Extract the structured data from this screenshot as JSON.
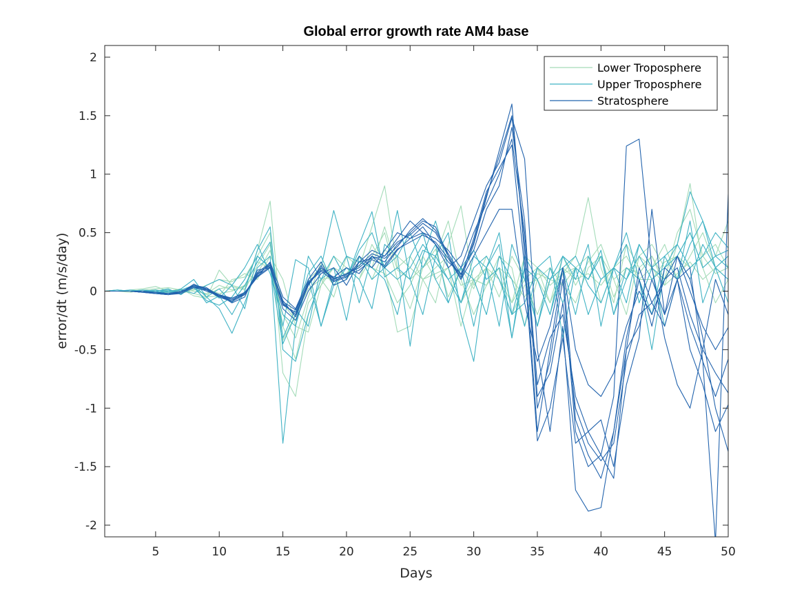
{
  "chart_data": {
    "type": "line",
    "title": "Global error growth rate AM4 base",
    "xlabel": "Days",
    "ylabel": "error/dt (m/s/day)",
    "xlim": [
      1,
      50
    ],
    "ylim": [
      -2.1,
      2.1
    ],
    "xticks": [
      5,
      10,
      15,
      20,
      25,
      30,
      35,
      40,
      45,
      50
    ],
    "yticks": [
      -2,
      -1.5,
      -1,
      -0.5,
      0,
      0.5,
      1,
      1.5,
      2
    ],
    "grid": false,
    "legend_position": "top-right",
    "series": [
      {
        "name": "Lower Troposphere",
        "color": "#a3dbb8",
        "lines": [
          [
            0,
            0,
            0,
            0.01,
            -0.01,
            0,
            -0.01,
            0.02,
            -0.03,
            0.02,
            0.04,
            0.01,
            0.22,
            0.4,
            -0.3,
            -0.58,
            -0.1,
            0.05,
            0.2,
            0.14,
            0.3,
            0.2,
            0.55,
            0.18,
            0.1,
            0.2,
            0.36,
            -0.05,
            0.2,
            0.02,
            0.3,
            0.1,
            -0.2,
            0.05,
            0.1,
            -0.1,
            0.3,
            0.05,
            0.25,
            0.4,
            0.1,
            0.2,
            0.15,
            0.3,
            0.05,
            0.4,
            0.92,
            0.2,
            0.3,
            0.6
          ],
          [
            0,
            0,
            0.01,
            0.02,
            0.04,
            0,
            0.02,
            -0.04,
            -0.06,
            0.18,
            0.05,
            0.02,
            0.35,
            0.77,
            -0.42,
            -0.2,
            0.02,
            0.1,
            -0.05,
            0.3,
            0.2,
            0.55,
            0.9,
            0.2,
            0.3,
            0.1,
            0.15,
            0.2,
            -0.3,
            0.1,
            0.05,
            0.2,
            -0.1,
            0.3,
            0.2,
            -0.1,
            0.15,
            0.3,
            0.8,
            0.2,
            -0.1,
            0.4,
            0.2,
            0.3,
            0.1,
            0.5,
            0.7,
            0.3,
            0.4,
            0.2
          ],
          [
            0,
            0,
            -0.01,
            0.01,
            0.02,
            0.03,
            0.01,
            -0.02,
            -0.05,
            -0.04,
            0.1,
            0.12,
            0.3,
            0.5,
            -0.7,
            -0.9,
            -0.2,
            0.1,
            0.12,
            0.2,
            0.1,
            0.3,
            0.5,
            0.1,
            -0.15,
            0.2,
            0.3,
            0.6,
            0.1,
            -0.2,
            0.05,
            0.3,
            0.2,
            -0.3,
            0.1,
            0.2,
            0.05,
            -0.1,
            0.2,
            0.3,
            0.1,
            -0.2,
            0.3,
            0.4,
            0.2,
            0.3,
            0.5,
            0.2,
            -0.1,
            0.1
          ],
          [
            0,
            0,
            0,
            -0.01,
            0.01,
            0,
            -0.02,
            0.01,
            0.05,
            0.1,
            0.08,
            0.15,
            0.1,
            0.3,
            0.1,
            -0.3,
            -0.35,
            0.05,
            0.3,
            0.2,
            0.1,
            0.4,
            0.2,
            -0.35,
            -0.3,
            0.1,
            0.2,
            0.3,
            0.05,
            0.1,
            0.2,
            -0.05,
            0.3,
            0.1,
            -0.2,
            0.1,
            0.05,
            0.2,
            0.3,
            -0.1,
            0.2,
            0.1,
            0.3,
            0.2,
            0.4,
            0.1,
            0.3,
            0.5,
            0.2,
            0.1
          ],
          [
            0,
            0.01,
            0,
            0,
            -0.02,
            -0.01,
            0.01,
            0,
            -0.02,
            0.05,
            0.01,
            0.04,
            0.25,
            0.2,
            -0.2,
            -0.4,
            -0.05,
            0.25,
            0.1,
            0.15,
            0.3,
            0.1,
            0.35,
            0.3,
            0.2,
            0.1,
            -0.1,
            0.4,
            0.73,
            0.05,
            0.2,
            0.1,
            -0.1,
            0.1,
            0.2,
            0.05,
            0.15,
            0.2,
            0.1,
            0.3,
            -0.05,
            0.2,
            0.1,
            0.1,
            0.25,
            0.3,
            0.2,
            0.3,
            0.15,
            0.2
          ],
          [
            0,
            0,
            0,
            0,
            0.01,
            -0.01,
            0,
            0.03,
            0.02,
            -0.02,
            0,
            0.05,
            0.15,
            0.35,
            -0.1,
            -0.25,
            0.1,
            0.2,
            0.05,
            0.1,
            0.25,
            0.2,
            0.15,
            -0.1,
            0.05,
            0.3,
            0.1,
            0.2,
            -0.1,
            0.1,
            0.05,
            0.2,
            0.1,
            -0.05,
            0.15,
            0.1,
            0.2,
            0.1,
            0.15,
            0.05,
            0.2,
            0.3,
            0.1,
            0.2,
            0.05,
            0.15,
            0.25,
            0.1,
            0.2,
            0.3
          ]
        ]
      },
      {
        "name": "Upper Troposphere",
        "color": "#3fb2c4",
        "lines": [
          [
            0,
            0,
            0,
            0,
            -0.01,
            0,
            0.01,
            0.05,
            -0.1,
            -0.04,
            -0.2,
            0,
            0.35,
            0.55,
            -0.5,
            -0.6,
            -0.2,
            0.1,
            0.3,
            0.1,
            0.4,
            0.68,
            0.12,
            0.2,
            0.1,
            0.35,
            0.3,
            0.5,
            -0.2,
            -0.6,
            0.2,
            0.4,
            -0.4,
            0.2,
            0.1,
            -0.2,
            0.3,
            0.1,
            0.4,
            -0.3,
            0.2,
            0.5,
            0.1,
            -0.2,
            0.3,
            0.4,
            0.85,
            0.6,
            0.3,
            0.35
          ],
          [
            0,
            0.01,
            0,
            -0.01,
            0,
            0.02,
            -0.03,
            0.05,
            -0.05,
            -0.15,
            -0.36,
            -0.1,
            0.2,
            0.3,
            -1.3,
            -0.3,
            0.1,
            -0.3,
            0.05,
            0.2,
            0.1,
            -0.15,
            0.4,
            0.3,
            -0.47,
            0.3,
            0.6,
            0.2,
            -0.1,
            0.3,
            0.2,
            -0.3,
            0.4,
            0.1,
            -0.3,
            0.2,
            -0.1,
            0.2,
            0.1,
            0.35,
            -0.2,
            0.1,
            0.4,
            0.2,
            -0.3,
            0.1,
            0.6,
            -0.1,
            0.2,
            0.3
          ],
          [
            0,
            0,
            0.01,
            0,
            0.01,
            -0.01,
            0,
            0.04,
            0.02,
            -0.06,
            0.05,
            -0.15,
            0.3,
            0.2,
            -0.3,
            0.27,
            0.2,
            -0.3,
            0.1,
            0.3,
            0.25,
            0.2,
            0.1,
            -0.2,
            0.3,
            0.5,
            0.1,
            -0.1,
            0.2,
            0.35,
            0.1,
            0.2,
            -0.4,
            0.3,
            0.1,
            -0.2,
            0.2,
            0.3,
            0.05,
            -0.1,
            0.2,
            0.1,
            0.3,
            0.1,
            0.2,
            0.4,
            0.2,
            0.3,
            0.5,
            0.37
          ],
          [
            0,
            0,
            0,
            0.01,
            0,
            -0.02,
            0.02,
            0.1,
            -0.05,
            0.02,
            -0.1,
            0.05,
            0.25,
            0.42,
            -0.4,
            -0.15,
            -0.3,
            0.2,
            0.69,
            0.3,
            -0.1,
            0.3,
            0.2,
            0.69,
            0.1,
            -0.2,
            0.3,
            0.1,
            0.2,
            -0.3,
            0.2,
            0.5,
            -0.2,
            -0.1,
            0.2,
            0.3,
            -0.4,
            0.2,
            0.1,
            0.3,
            -0.2,
            0.2,
            0.1,
            -0.5,
            0.2,
            0.3,
            0.1,
            0.4,
            0.2,
            -0.1
          ],
          [
            0,
            0,
            0,
            0,
            -0.02,
            0,
            0.01,
            -0.02,
            0.05,
            0.1,
            0.05,
            0.2,
            0.4,
            0.15,
            -0.2,
            -0.3,
            0.3,
            0.1,
            0.2,
            -0.25,
            0.3,
            0.1,
            0.2,
            0.3,
            0.5,
            0.2,
            0.4,
            -0.1,
            0.2,
            0.1,
            -0.2,
            0.3,
            0.1,
            -0.3,
            0.2,
            0.1,
            0.3,
            0.2,
            -0.2,
            0.1,
            0.2,
            -0.1,
            0.4,
            0.2,
            0.1,
            0.3,
            0.5,
            0.2,
            0.3,
            0.2
          ],
          [
            0,
            0.01,
            0,
            0,
            0,
            0.01,
            -0.02,
            0.03,
            -0.08,
            -0.12,
            -0.05,
            0.1,
            0.3,
            0.2,
            -0.45,
            -0.2,
            0.15,
            0.3,
            0.05,
            0.1,
            0.35,
            0.5,
            0.2,
            0.1,
            0.2,
            0.4,
            0.25,
            0.1,
            -0.1,
            0.2,
            0.3,
            0.1,
            -0.2,
            0.2,
            -0.3,
            0.1,
            0.2,
            -0.2,
            0.3,
            0.1,
            0.2,
            0.4,
            -0.1,
            0.2,
            0.3,
            0.1,
            0.4,
            0.6,
            0.2,
            0.1
          ]
        ]
      },
      {
        "name": "Stratosphere",
        "color": "#2263ad",
        "lines": [
          [
            0,
            0,
            0,
            -0.01,
            -0.02,
            -0.03,
            -0.01,
            0.05,
            0.02,
            -0.05,
            -0.08,
            -0.02,
            0.15,
            0.22,
            -0.1,
            -0.2,
            0.05,
            0.2,
            0.1,
            0.15,
            0.2,
            0.3,
            0.25,
            0.4,
            0.5,
            0.6,
            0.55,
            0.3,
            0.1,
            0.4,
            0.8,
            1.2,
            1.6,
            0.3,
            -1.2,
            -0.5,
            0.2,
            -1.1,
            -1.4,
            -1.6,
            -1.2,
            -0.5,
            -0.3,
            0.1,
            -0.2,
            0.3,
            0.1,
            -0.4,
            -1.0,
            -1.37
          ],
          [
            0,
            0,
            0,
            -0.01,
            -0.01,
            -0.02,
            0,
            0.04,
            0,
            -0.04,
            -0.06,
            -0.01,
            0.12,
            0.25,
            -0.05,
            -0.15,
            0.1,
            0.25,
            0.05,
            0.1,
            0.3,
            0.2,
            0.35,
            0.5,
            0.45,
            0.55,
            0.4,
            0.2,
            0.3,
            0.6,
            0.9,
            1.1,
            1.48,
            1.13,
            -0.5,
            -1.2,
            -0.3,
            -1.7,
            -1.88,
            -1.85,
            -1.2,
            -0.4,
            0.1,
            -0.3,
            0.2,
            0.1,
            -0.5,
            -0.8,
            -1.2,
            -0.97
          ],
          [
            0,
            0,
            0,
            0,
            -0.02,
            -0.03,
            -0.02,
            0.03,
            0.01,
            -0.03,
            -0.1,
            -0.05,
            0.18,
            0.2,
            -0.15,
            -0.25,
            0,
            0.15,
            0.2,
            0.05,
            0.25,
            0.35,
            0.3,
            0.45,
            0.6,
            0.5,
            0.45,
            0.35,
            0.2,
            0.5,
            0.75,
            1.0,
            1.3,
            0.5,
            -0.8,
            -0.4,
            -0.2,
            -0.9,
            -1.2,
            -1.4,
            -1.6,
            -0.5,
            0.2,
            -0.1,
            -0.3,
            0.1,
            0.2,
            -0.6,
            -2.15,
            0.83
          ],
          [
            0,
            0,
            0,
            -0.01,
            -0.02,
            -0.02,
            -0.01,
            0.05,
            0.03,
            -0.04,
            -0.07,
            -0.03,
            0.14,
            0.23,
            -0.12,
            -0.18,
            0.08,
            0.18,
            0.12,
            0.2,
            0.15,
            0.3,
            0.2,
            0.35,
            0.45,
            0.5,
            0.4,
            0.25,
            0.15,
            0.35,
            0.7,
            0.9,
            1.4,
            0.6,
            -1.0,
            -0.6,
            0.1,
            -1.2,
            -1.5,
            -1.4,
            -0.9,
            1.24,
            1.3,
            0.2,
            -0.4,
            -0.8,
            -1.0,
            -0.5,
            0.1,
            -0.2
          ],
          [
            0,
            0,
            0,
            0,
            -0.01,
            -0.02,
            -0.01,
            0.04,
            0.02,
            -0.04,
            -0.08,
            -0.02,
            0.13,
            0.21,
            -0.08,
            -0.22,
            0.05,
            0.22,
            0.08,
            0.12,
            0.25,
            0.28,
            0.3,
            0.42,
            0.48,
            0.58,
            0.5,
            0.3,
            0.12,
            0.45,
            0.85,
            1.05,
            1.25,
            0.2,
            -1.28,
            -1.0,
            -0.4,
            -1.3,
            -1.2,
            -1.1,
            -1.5,
            -0.8,
            -0.4,
            0.7,
            -0.2,
            0.1,
            -0.3,
            -0.6,
            -0.9,
            -0.58
          ],
          [
            0,
            0,
            0,
            -0.01,
            -0.02,
            -0.03,
            -0.01,
            0.06,
            0.01,
            -0.05,
            -0.09,
            -0.03,
            0.16,
            0.24,
            -0.11,
            -0.2,
            0.06,
            0.2,
            0.11,
            0.14,
            0.22,
            0.32,
            0.28,
            0.38,
            0.52,
            0.62,
            0.52,
            0.32,
            0.14,
            0.42,
            0.82,
            1.15,
            1.5,
            0.4,
            -0.9,
            -0.7,
            -0.1,
            -1.0,
            -1.3,
            -1.45,
            -1.3,
            -0.6,
            -0.2,
            -0.1,
            0.1,
            0.2,
            -0.2,
            -0.5,
            -0.7,
            -0.87
          ],
          [
            0,
            0,
            0,
            -0.01,
            -0.01,
            -0.02,
            -0.01,
            0.04,
            0.02,
            -0.03,
            -0.06,
            -0.02,
            0.12,
            0.2,
            -0.09,
            -0.16,
            0.07,
            0.17,
            0.09,
            0.13,
            0.18,
            0.27,
            0.22,
            0.36,
            0.42,
            0.48,
            0.42,
            0.28,
            0.1,
            0.3,
            0.5,
            0.7,
            0.7,
            -0.1,
            -0.6,
            -0.3,
            0.2,
            -0.5,
            -0.8,
            -0.9,
            -0.7,
            -0.3,
            0,
            -0.2,
            0.1,
            0.3,
            0,
            -0.3,
            -0.5,
            -0.31
          ]
        ]
      }
    ]
  }
}
